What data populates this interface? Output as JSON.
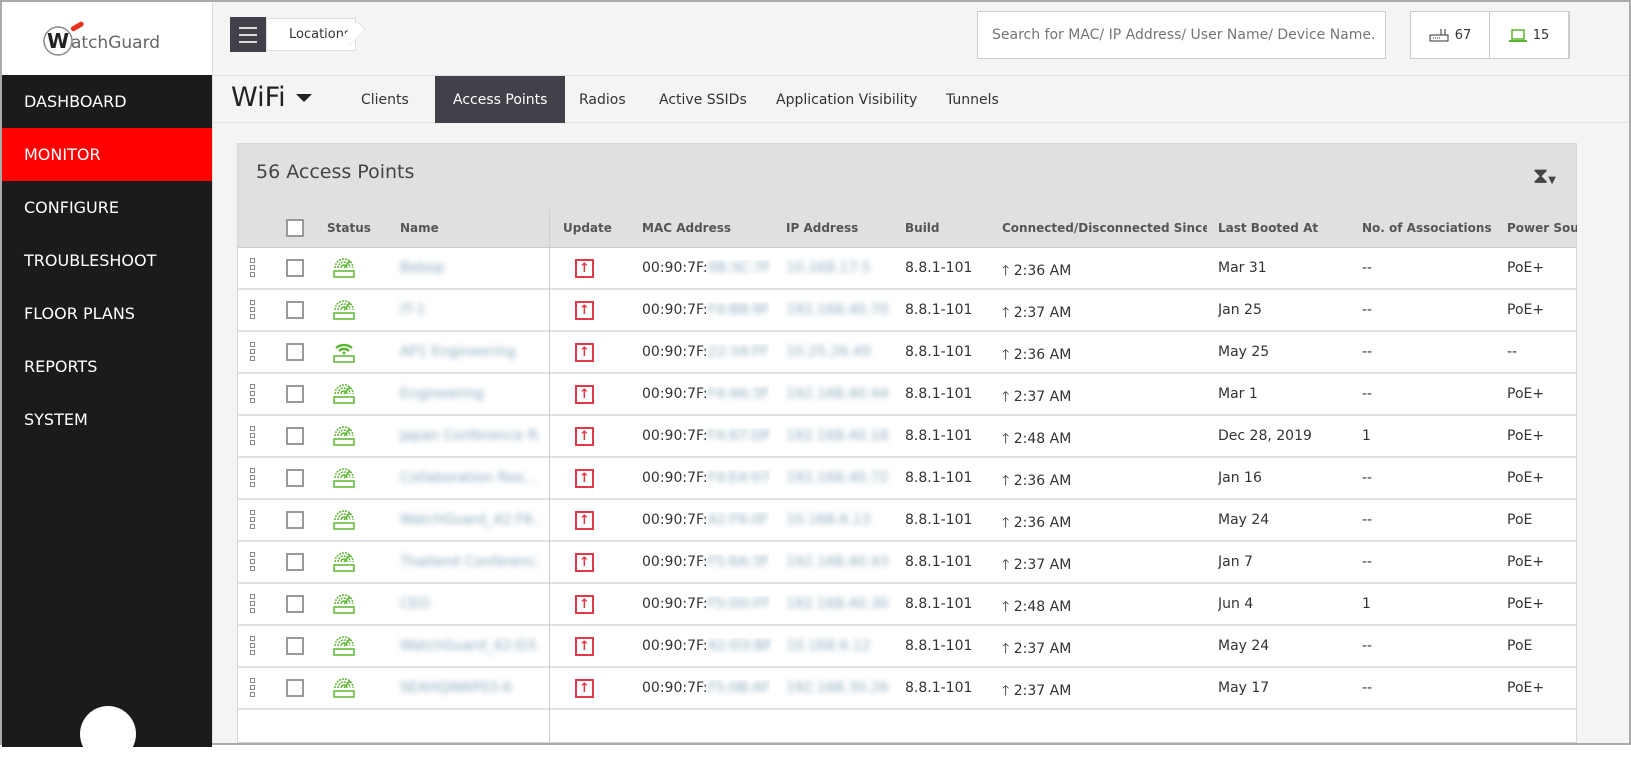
{
  "logo": "WatchGuard",
  "sidebar": {
    "items": [
      {
        "label": "DASHBOARD"
      },
      {
        "label": "MONITOR",
        "active": true
      },
      {
        "label": "CONFIGURE"
      },
      {
        "label": "TROUBLESHOOT"
      },
      {
        "label": "FLOOR PLANS"
      },
      {
        "label": "REPORTS"
      },
      {
        "label": "SYSTEM"
      }
    ]
  },
  "breadcrumb": "Locations",
  "search": {
    "placeholder": "Search for MAC/ IP Address/ User Name/ Device Name."
  },
  "counts": {
    "access_points": "67",
    "clients": "15"
  },
  "section": "WiFi",
  "tabs": [
    "Clients",
    "Access Points",
    "Radios",
    "Active SSIDs",
    "Application Visibility",
    "Tunnels"
  ],
  "active_tab": "Access Points",
  "panel": {
    "title": "56 Access Points"
  },
  "columns": [
    "Status",
    "Name",
    "Update",
    "MAC Address",
    "IP Address",
    "Build",
    "Connected/Disconnected Since ...",
    "Last Booted At",
    "No. of Associations ...",
    "Power Sou"
  ],
  "rows": [
    {
      "name": "Bebop",
      "mac": "00:90:7F:",
      "mac_hidden": "08:3C:7F",
      "ip": "10.168.17.5",
      "build": "8.8.1-101",
      "since": "2:36 AM",
      "booted": "Mar 31",
      "assoc": "--",
      "power": "PoE+",
      "status": "ap"
    },
    {
      "name": "IT-1",
      "mac": "00:90:7F:",
      "mac_hidden": "F4:B8:9F",
      "ip": "192.168.40.70",
      "build": "8.8.1-101",
      "since": "2:37 AM",
      "booted": "Jan 25",
      "assoc": "--",
      "power": "PoE+",
      "status": "ap"
    },
    {
      "name": "AP1 Engineering",
      "mac": "00:90:7F:",
      "mac_hidden": "22:34:FF",
      "ip": "10.25.26.49",
      "build": "8.8.1-101",
      "since": "2:36 AM",
      "booted": "May 25",
      "assoc": "--",
      "power": "--",
      "status": "wifi"
    },
    {
      "name": "Engineering",
      "mac": "00:90:7F:",
      "mac_hidden": "F4:4A:3F",
      "ip": "192.168.40.44",
      "build": "8.8.1-101",
      "since": "2:37 AM",
      "booted": "Mar 1",
      "assoc": "--",
      "power": "PoE+",
      "status": "ap"
    },
    {
      "name": "Japan Conference R...",
      "mac": "00:90:7F:",
      "mac_hidden": "F4:67:DF",
      "ip": "192.168.40.18",
      "build": "8.8.1-101",
      "since": "2:48 AM",
      "booted": "Dec 28, 2019",
      "assoc": "1",
      "power": "PoE+",
      "status": "ap"
    },
    {
      "name": "Collaboration Roo...",
      "mac": "00:90:7F:",
      "mac_hidden": "F4:E4:07",
      "ip": "192.168.40.72",
      "build": "8.8.1-101",
      "since": "2:36 AM",
      "booted": "Jan 16",
      "assoc": "--",
      "power": "PoE+",
      "status": "ap"
    },
    {
      "name": "WatchGuard_42:F6...",
      "mac": "00:90:7F:",
      "mac_hidden": "42:F6:0F",
      "ip": "10.168.6.13",
      "build": "8.8.1-101",
      "since": "2:36 AM",
      "booted": "May 24",
      "assoc": "--",
      "power": "PoE",
      "status": "ap"
    },
    {
      "name": "Thailand Conferenc...",
      "mac": "00:90:7F:",
      "mac_hidden": "F5:6A:3F",
      "ip": "192.168.40.43",
      "build": "8.8.1-101",
      "since": "2:37 AM",
      "booted": "Jan 7",
      "assoc": "--",
      "power": "PoE+",
      "status": "ap"
    },
    {
      "name": "CEO",
      "mac": "00:90:7F:",
      "mac_hidden": "F5:D0:FF",
      "ip": "192.168.40.30",
      "build": "8.8.1-101",
      "since": "2:48 AM",
      "booted": "Jun 4",
      "assoc": "1",
      "power": "PoE+",
      "status": "ap"
    },
    {
      "name": "WatchGuard_42:D3...",
      "mac": "00:90:7F:",
      "mac_hidden": "42:D3:BF",
      "ip": "10.168.6.12",
      "build": "8.8.1-101",
      "since": "2:37 AM",
      "booted": "May 24",
      "assoc": "--",
      "power": "PoE",
      "status": "ap"
    },
    {
      "name": "SEAHQWAP03-6",
      "mac": "00:90:7F:",
      "mac_hidden": "F5:0B:AF",
      "ip": "192.168.30.26",
      "build": "8.8.1-101",
      "since": "2:37 AM",
      "booted": "May 17",
      "assoc": "--",
      "power": "PoE+",
      "status": "ap"
    }
  ],
  "colors": {
    "accent": "#ff0000",
    "tab_active": "#42414a",
    "status_ok": "#5cb531",
    "update": "#e03a4a"
  }
}
